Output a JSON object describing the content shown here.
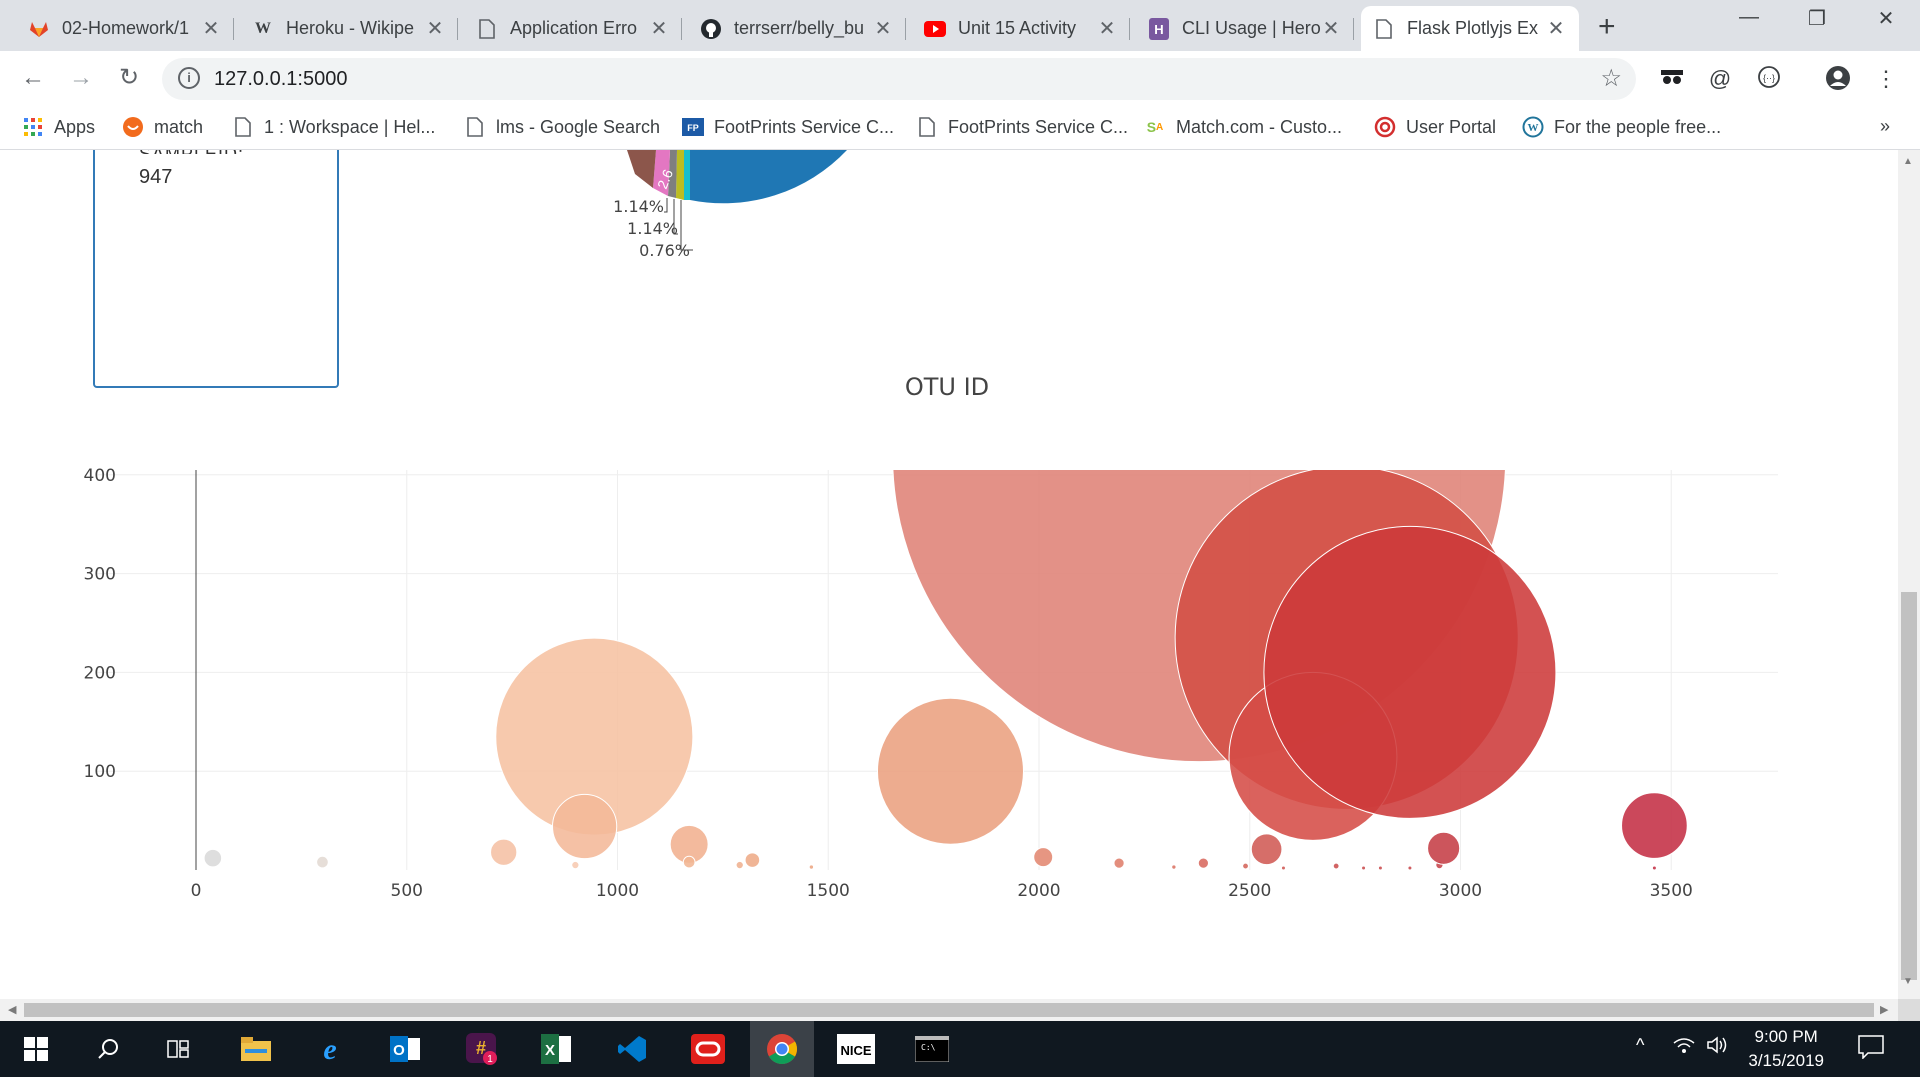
{
  "tabs": [
    {
      "title": "02-Homework/1",
      "icon": "gitlab-icon",
      "active": false
    },
    {
      "title": "Heroku - Wikipe",
      "icon": "wikipedia-icon",
      "active": false
    },
    {
      "title": "Application Erro",
      "icon": "page-icon",
      "active": false
    },
    {
      "title": "terrserr/belly_bu",
      "icon": "github-icon",
      "active": false
    },
    {
      "title": "Unit 15 Activity",
      "icon": "youtube-icon",
      "active": false
    },
    {
      "title": "CLI Usage | Hero",
      "icon": "heroku-icon",
      "active": false
    },
    {
      "title": "Flask Plotlyjs Ex",
      "icon": "page-icon",
      "active": true
    }
  ],
  "address": {
    "url": "127.0.0.1:5000"
  },
  "bookmarks": [
    {
      "label": "Apps",
      "icon": "apps-grid-icon"
    },
    {
      "label": "match",
      "icon": "match-icon"
    },
    {
      "label": "1 : Workspace | Hel...",
      "icon": "page-icon"
    },
    {
      "label": "lms - Google Search",
      "icon": "page-icon"
    },
    {
      "label": "FootPrints Service C...",
      "icon": "footprints-icon"
    },
    {
      "label": "FootPrints Service C...",
      "icon": "page-icon"
    },
    {
      "label": "Match.com - Custo...",
      "icon": "match-com-icon"
    },
    {
      "label": "User Portal",
      "icon": "user-portal-icon"
    },
    {
      "label": "For the people free...",
      "icon": "wordpress-icon"
    }
  ],
  "bookmarks_overflow": "»",
  "panel": {
    "value": "947"
  },
  "pie": {
    "labels": [
      "1.14%",
      "1.14%",
      "0.76%"
    ],
    "slice_label_partial": "2.6",
    "slice_label_partial2": "3"
  },
  "chart_data": {
    "type": "scatter",
    "title": "OTU ID",
    "x_ticks": [
      0,
      500,
      1000,
      1500,
      2000,
      2500,
      3000,
      3500
    ],
    "y_ticks": [
      100,
      200,
      300,
      400
    ],
    "xlim": [
      -30,
      3780
    ],
    "ylim": [
      0,
      410
    ],
    "bubble_mode": true,
    "points": [
      {
        "x": 40,
        "y": 12,
        "size": 12,
        "color": "#d9d9d9"
      },
      {
        "x": 300,
        "y": 8,
        "size": 8,
        "color": "#e3d9d3"
      },
      {
        "x": 730,
        "y": 18,
        "size": 18,
        "color": "#f5c0a4"
      },
      {
        "x": 900,
        "y": 5,
        "size": 5,
        "color": "#f7c9b0"
      },
      {
        "x": 945,
        "y": 135,
        "size": 135,
        "color": "#f6c2a2"
      },
      {
        "x": 922,
        "y": 44,
        "size": 44,
        "color": "#f4b898"
      },
      {
        "x": 1170,
        "y": 26,
        "size": 26,
        "color": "#f1b08f"
      },
      {
        "x": 1170,
        "y": 8,
        "size": 8,
        "color": "#f1b592"
      },
      {
        "x": 1290,
        "y": 5,
        "size": 5,
        "color": "#efb090"
      },
      {
        "x": 1320,
        "y": 10,
        "size": 10,
        "color": "#eeab88"
      },
      {
        "x": 1460,
        "y": 3,
        "size": 3,
        "color": "#eca582"
      },
      {
        "x": 1790,
        "y": 100,
        "size": 100,
        "color": "#eba07f"
      },
      {
        "x": 2010,
        "y": 13,
        "size": 13,
        "color": "#e38871"
      },
      {
        "x": 2190,
        "y": 7,
        "size": 7,
        "color": "#df7e6b"
      },
      {
        "x": 2320,
        "y": 3,
        "size": 3,
        "color": "#db7363"
      },
      {
        "x": 2390,
        "y": 7,
        "size": 7,
        "color": "#d8695e"
      },
      {
        "x": 2490,
        "y": 4,
        "size": 4,
        "color": "#d4645a"
      },
      {
        "x": 2540,
        "y": 21,
        "size": 21,
        "color": "#d05a54"
      },
      {
        "x": 2580,
        "y": 2,
        "size": 2,
        "color": "#cf5752"
      },
      {
        "x": 2705,
        "y": 4,
        "size": 4,
        "color": "#cc4e4e"
      },
      {
        "x": 2770,
        "y": 2,
        "size": 2,
        "color": "#ca4b4c"
      },
      {
        "x": 2810,
        "y": 2,
        "size": 2,
        "color": "#c9494b"
      },
      {
        "x": 2880,
        "y": 2,
        "size": 2,
        "color": "#c8474b"
      },
      {
        "x": 2950,
        "y": 5,
        "size": 5,
        "color": "#c6444b"
      },
      {
        "x": 2960,
        "y": 22,
        "size": 22,
        "color": "#c53d45"
      },
      {
        "x": 3460,
        "y": 45,
        "size": 45,
        "color": "#c42f44"
      },
      {
        "x": 3460,
        "y": 2,
        "size": 2,
        "color": "#c42f44"
      },
      {
        "x": 2380,
        "y": 420,
        "size": 420,
        "color": "#df8276"
      },
      {
        "x": 2730,
        "y": 235,
        "size": 235,
        "color": "#d34f45"
      },
      {
        "x": 2650,
        "y": 115,
        "size": 115,
        "color": "#d54c47"
      },
      {
        "x": 2880,
        "y": 200,
        "size": 200,
        "color": "#cd3a3a"
      }
    ]
  },
  "taskbar": {
    "apps": [
      "windows-start-icon",
      "search-icon",
      "task-view-icon",
      "file-explorer-icon",
      "edge-icon",
      "outlook-icon",
      "slack-icon",
      "excel-icon",
      "vscode-icon",
      "oracle-icon",
      "chrome-icon",
      "nice-icon",
      "terminal-icon"
    ],
    "time": "9:00 PM",
    "date": "3/15/2019"
  }
}
